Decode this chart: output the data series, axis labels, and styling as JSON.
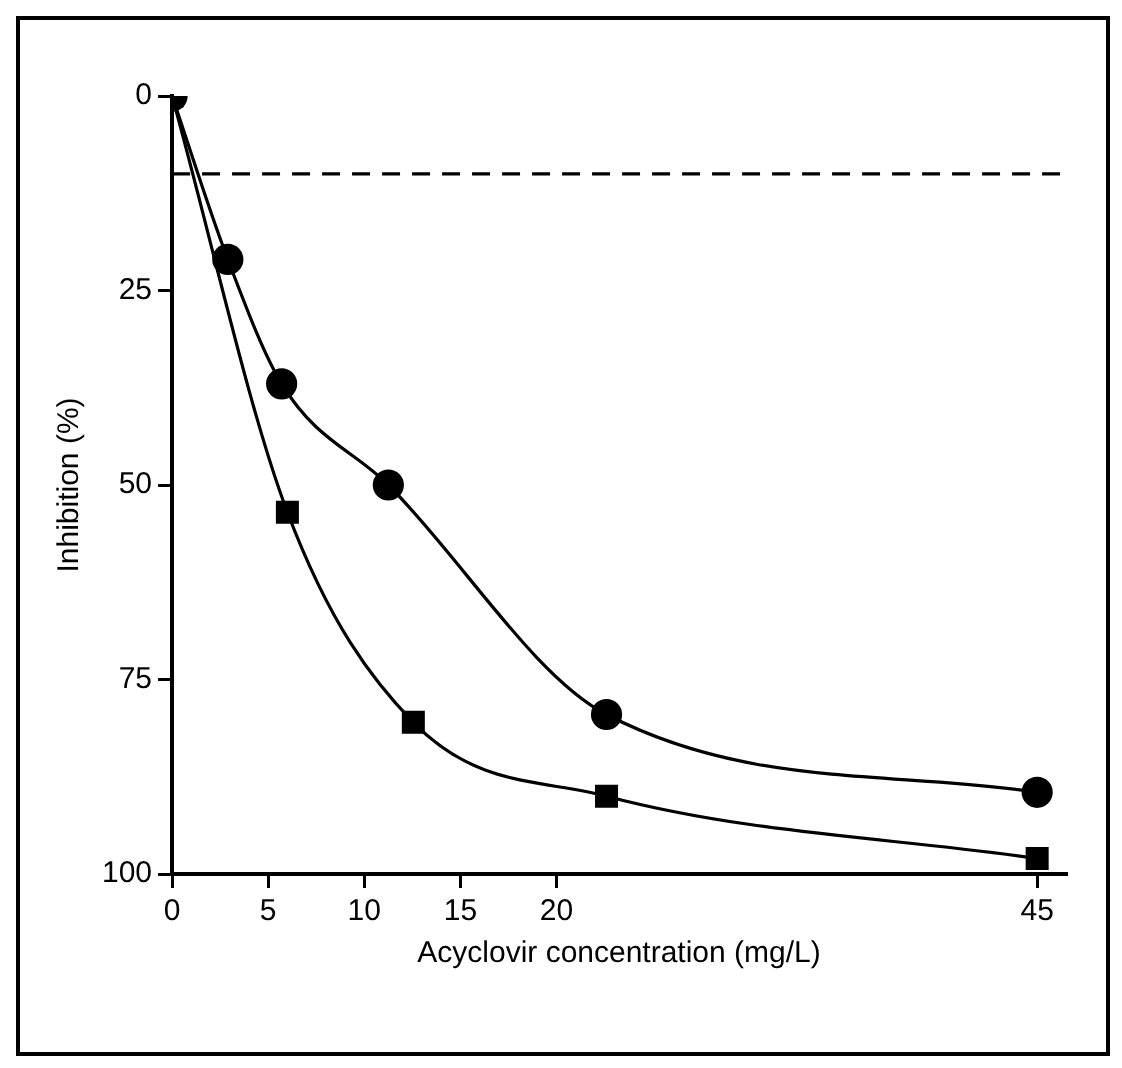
{
  "chart_data": {
    "type": "line",
    "xlabel": "Acyclovir concentration (mg/L)",
    "ylabel": "Inhibition (%)",
    "xlim": [
      0,
      46.5
    ],
    "xticks": [
      0,
      5,
      10,
      15,
      20,
      45
    ],
    "ylim": [
      100,
      0
    ],
    "yticks": [
      0,
      25,
      50,
      75,
      100
    ],
    "grid": false,
    "legend": false,
    "series": [
      {
        "color": "#000000",
        "marker": "circle",
        "x": [
          0,
          2.9,
          5.7,
          11.25,
          22.6,
          45
        ],
        "values": [
          0,
          21,
          37,
          50,
          79.5,
          89.5
        ]
      },
      {
        "color": "#000000",
        "marker": "square",
        "x": [
          0,
          6,
          12.55,
          22.6,
          45
        ],
        "values": [
          0,
          53.5,
          80.5,
          90,
          98
        ]
      }
    ],
    "ref_lines": [
      {
        "axis": "y",
        "value": 10,
        "color": "#000000",
        "line_style": "dashed"
      }
    ]
  }
}
